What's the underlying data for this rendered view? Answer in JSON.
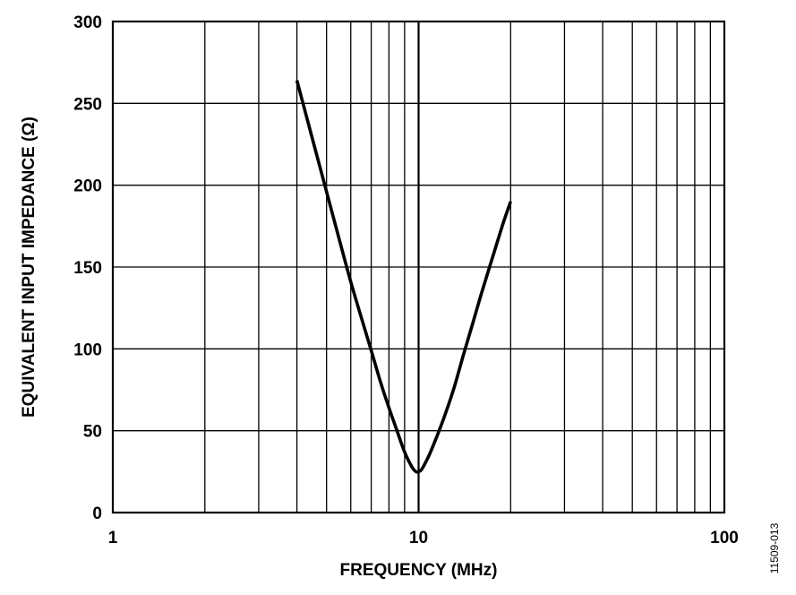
{
  "chart_data": {
    "type": "line",
    "x_scale": "log",
    "xlabel": "FREQUENCY (MHz)",
    "ylabel": "EQUIVALENT INPUT IMPEDANCE (Ω)",
    "xlim": [
      1,
      100
    ],
    "ylim": [
      0,
      300
    ],
    "x_ticks": [
      {
        "value": 1,
        "label": "1"
      },
      {
        "value": 10,
        "label": "10"
      },
      {
        "value": 100,
        "label": "100"
      }
    ],
    "y_ticks": [
      {
        "value": 0,
        "label": "0"
      },
      {
        "value": 50,
        "label": "50"
      },
      {
        "value": 100,
        "label": "100"
      },
      {
        "value": 150,
        "label": "150"
      },
      {
        "value": 200,
        "label": "200"
      },
      {
        "value": 250,
        "label": "250"
      },
      {
        "value": 300,
        "label": "300"
      }
    ],
    "grid": true,
    "legend": "none",
    "series": [
      {
        "color": "#000000",
        "x": [
          4,
          4.5,
          5,
          5.5,
          6,
          6.5,
          7,
          7.5,
          8,
          8.5,
          9,
          9.5,
          9.8,
          10,
          10.2,
          10.5,
          11,
          12,
          13,
          14,
          15,
          16,
          17,
          18,
          19,
          20
        ],
        "y": [
          264,
          228,
          196,
          167,
          141,
          119,
          99,
          80,
          64,
          50,
          37,
          28,
          25,
          25,
          26,
          30,
          38,
          56,
          75,
          96,
          115,
          133,
          149,
          164,
          178,
          190
        ]
      }
    ]
  },
  "figure_id": "11509-013"
}
